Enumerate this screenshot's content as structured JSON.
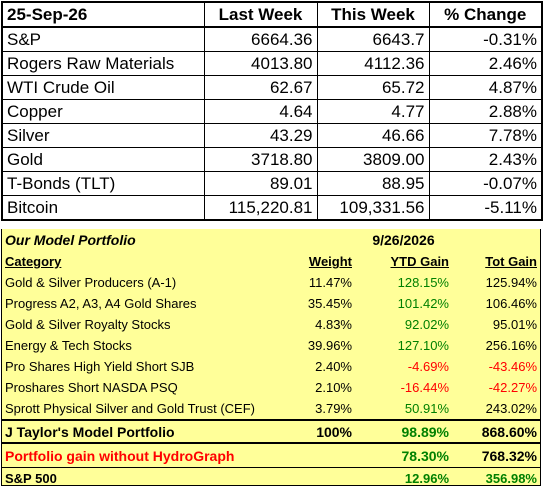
{
  "market": {
    "headers": [
      "25-Sep-26",
      "Last Week",
      "This Week",
      "% Change"
    ],
    "rows": [
      {
        "name": "S&P",
        "last": "6664.36",
        "this": "6643.7",
        "change": "-0.31%"
      },
      {
        "name": "Rogers Raw Materials",
        "last": "4013.80",
        "this": "4112.36",
        "change": "2.46%"
      },
      {
        "name": "WTI Crude Oil",
        "last": "62.67",
        "this": "65.72",
        "change": "4.87%"
      },
      {
        "name": "Copper",
        "last": "4.64",
        "this": "4.77",
        "change": "2.88%"
      },
      {
        "name": "Silver",
        "last": "43.29",
        "this": "46.66",
        "change": "7.78%"
      },
      {
        "name": "Gold",
        "last": "3718.80",
        "this": "3809.00",
        "change": "2.43%"
      },
      {
        "name": "T-Bonds (TLT)",
        "last": "89.01",
        "this": "88.95",
        "change": "-0.07%"
      },
      {
        "name": "Bitcoin",
        "last": "115,220.81",
        "this": "109,331.56",
        "change": "-5.11%"
      }
    ]
  },
  "portfolio": {
    "title": "Our Model Portfolio",
    "date": "9/26/2026",
    "columns": {
      "category": "Category",
      "weight": "Weight",
      "ytd": "YTD Gain",
      "tot": "Tot Gain"
    },
    "rows": [
      {
        "category": "Gold & Silver Producers (A-1)",
        "weight": "11.47%",
        "ytd": "128.15%",
        "tot": "125.94%"
      },
      {
        "category": "Progress A2, A3, A4 Gold Shares",
        "weight": "35.45%",
        "ytd": "101.42%",
        "tot": "106.46%"
      },
      {
        "category": "Gold & Silver Royalty Stocks",
        "weight": "4.83%",
        "ytd": "92.02%",
        "tot": "95.01%"
      },
      {
        "category": "Energy  & Tech Stocks",
        "weight": "39.96%",
        "ytd": "127.10%",
        "tot": "256.16%"
      },
      {
        "category": "Pro Shares High Yield Short SJB",
        "weight": "2.40%",
        "ytd": "-4.69%",
        "tot": "-43.46%"
      },
      {
        "category": "Proshares Short NASDA PSQ",
        "weight": "2.10%",
        "ytd": "-16.44%",
        "tot": "-42.27%"
      },
      {
        "category": "Sprott Physical Silver and Gold Trust (CEF)",
        "weight": "3.79%",
        "ytd": "50.91%",
        "tot": "243.02%"
      }
    ],
    "total": {
      "label": "J Taylor's Model Portfolio",
      "weight": "100%",
      "ytd": "98.89%",
      "tot": "868.60%"
    },
    "hydrograph": {
      "label": "Portfolio gain without HydroGraph",
      "ytd": "78.30%",
      "tot": "768.32%"
    },
    "sp500": {
      "label": "S&P 500",
      "ytd": "12.96%",
      "tot": "356.98%"
    }
  }
}
